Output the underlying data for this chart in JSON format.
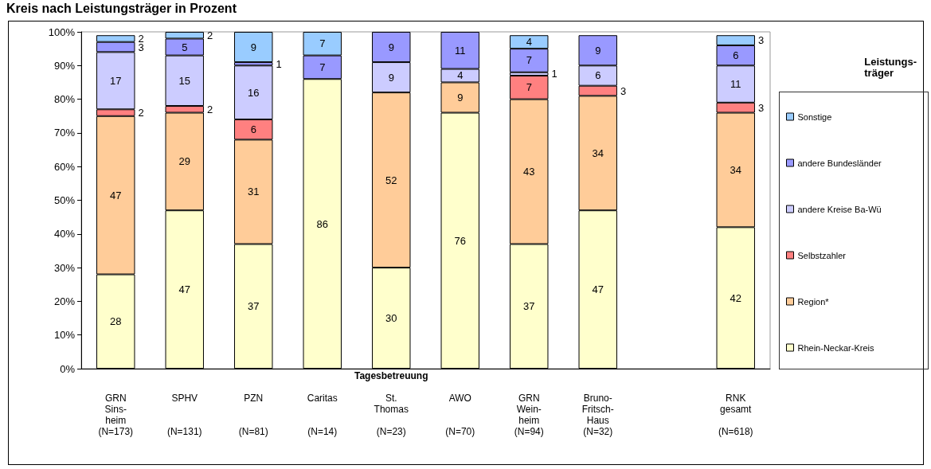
{
  "chart_data": {
    "type": "bar",
    "stacked": true,
    "title": "Kreis nach Leistungsträger in Prozent",
    "xlabel": "Tagesbetreuung",
    "legend_title": "Leistungs-\nträger",
    "legend": "right",
    "data_labels": true,
    "categories": [
      "GRN\nSins-\nheim\n(N=173)",
      "SPHV\n(N=131)",
      "PZN\n(N=81)",
      "Caritas\n(N=14)",
      "St.\nThomas\n(N=23)",
      "AWO\n(N=70)",
      "GRN\nWein-\nheim\n(N=94)",
      "Bruno-\nFritsch-\nHaus\n(N=32)",
      null,
      "RNK\ngesamt\n(N=618)"
    ],
    "ylim": [
      0,
      100
    ],
    "yticks": [
      {
        "value": 0,
        "label": "0%"
      },
      {
        "value": 10,
        "label": "10%"
      },
      {
        "value": 20,
        "label": "20%"
      },
      {
        "value": 30,
        "label": "30%"
      },
      {
        "value": 40,
        "label": "40%"
      },
      {
        "value": 50,
        "label": "50%"
      },
      {
        "value": 60,
        "label": "60%"
      },
      {
        "value": 70,
        "label": "70%"
      },
      {
        "value": 80,
        "label": "80%"
      },
      {
        "value": 90,
        "label": "90%"
      },
      {
        "value": 100,
        "label": "100%"
      }
    ],
    "series": [
      {
        "name": "Rhein-Neckar-Kreis",
        "color": "#ffffcc",
        "values": [
          28,
          47,
          37,
          86,
          30,
          76,
          37,
          47,
          null,
          42
        ]
      },
      {
        "name": "Region*",
        "color": "#ffcc99",
        "values": [
          47,
          29,
          31,
          null,
          52,
          9,
          43,
          34,
          null,
          34
        ]
      },
      {
        "name": "Selbstzahler",
        "color": "#ff8080",
        "values": [
          2,
          2,
          6,
          null,
          null,
          null,
          7,
          3,
          null,
          3
        ]
      },
      {
        "name": "andere Kreise Ba-Wü",
        "color": "#ccccff",
        "values": [
          17,
          15,
          16,
          null,
          9,
          4,
          1,
          6,
          null,
          11
        ]
      },
      {
        "name": "andere Bundesländer",
        "color": "#9999ff",
        "values": [
          3,
          5,
          1,
          7,
          9,
          11,
          7,
          9,
          null,
          6
        ]
      },
      {
        "name": "Sonstige",
        "color": "#99ccff",
        "values": [
          2,
          2,
          9,
          7,
          null,
          null,
          4,
          null,
          null,
          3
        ]
      }
    ]
  }
}
